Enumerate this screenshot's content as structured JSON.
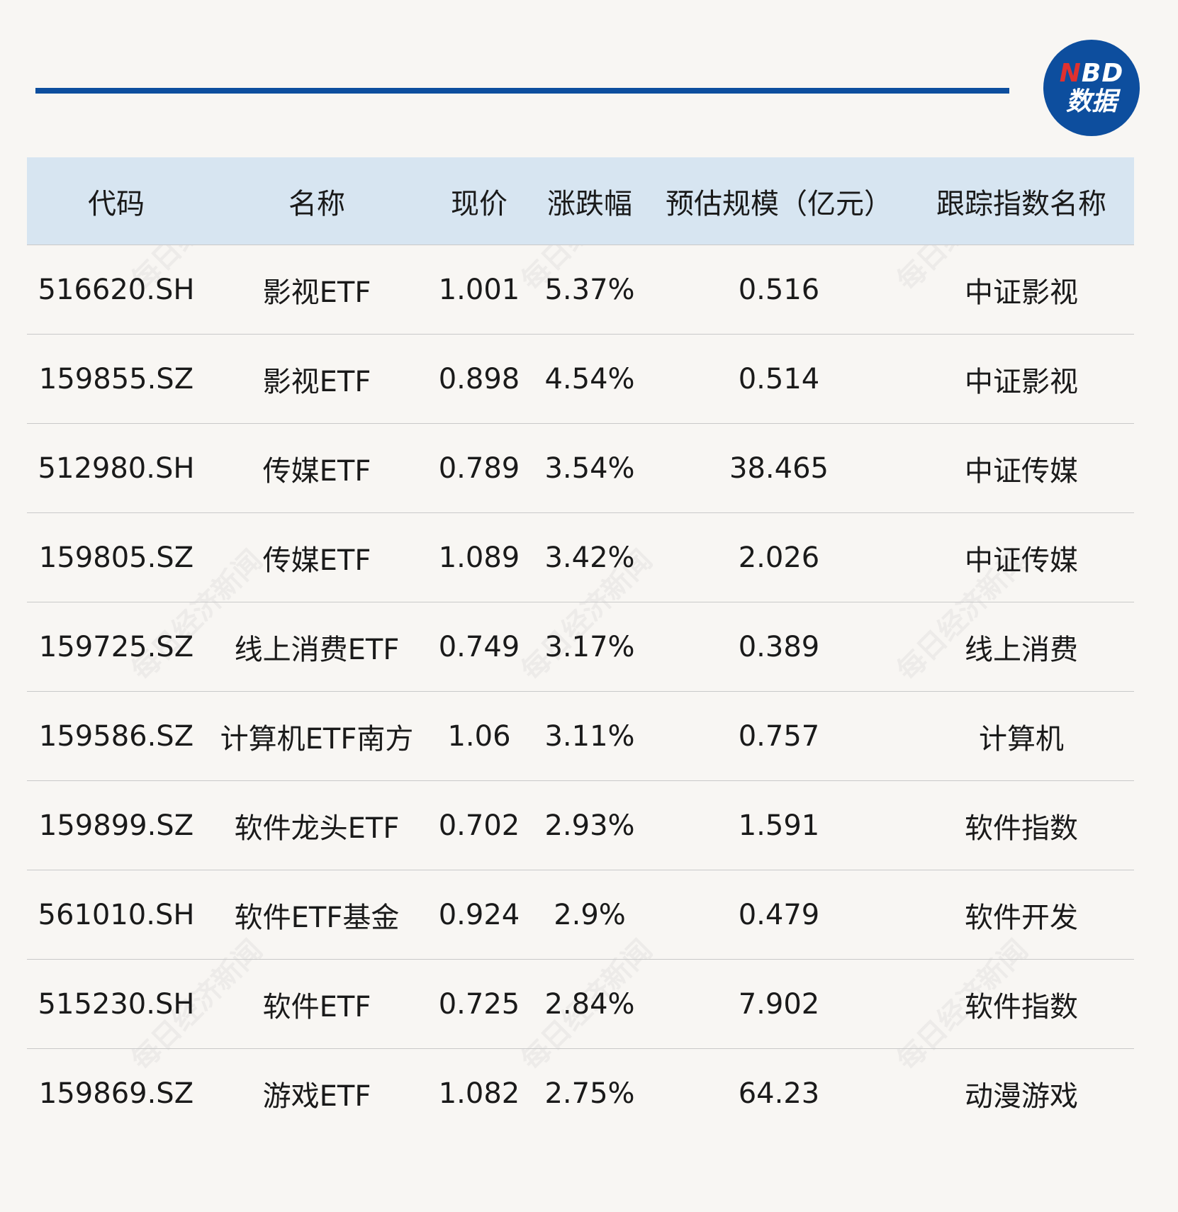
{
  "logo": {
    "line1_n": "N",
    "line1_rest": "BD",
    "line2": "数据"
  },
  "watermark_text": "每日经济新闻",
  "table": {
    "headers": [
      "代码",
      "名称",
      "现价",
      "涨跌幅",
      "预估规模（亿元）",
      "跟踪指数名称"
    ],
    "rows": [
      [
        "516620.SH",
        "影视ETF",
        "1.001",
        "5.37%",
        "0.516",
        "中证影视"
      ],
      [
        "159855.SZ",
        "影视ETF",
        "0.898",
        "4.54%",
        "0.514",
        "中证影视"
      ],
      [
        "512980.SH",
        "传媒ETF",
        "0.789",
        "3.54%",
        "38.465",
        "中证传媒"
      ],
      [
        "159805.SZ",
        "传媒ETF",
        "1.089",
        "3.42%",
        "2.026",
        "中证传媒"
      ],
      [
        "159725.SZ",
        "线上消费ETF",
        "0.749",
        "3.17%",
        "0.389",
        "线上消费"
      ],
      [
        "159586.SZ",
        "计算机ETF南方",
        "1.06",
        "3.11%",
        "0.757",
        "计算机"
      ],
      [
        "159899.SZ",
        "软件龙头ETF",
        "0.702",
        "2.93%",
        "1.591",
        "软件指数"
      ],
      [
        "561010.SH",
        "软件ETF基金",
        "0.924",
        "2.9%",
        "0.479",
        "软件开发"
      ],
      [
        "515230.SH",
        "软件ETF",
        "0.725",
        "2.84%",
        "7.902",
        "软件指数"
      ],
      [
        "159869.SZ",
        "游戏ETF",
        "1.082",
        "2.75%",
        "64.23",
        "动漫游戏"
      ]
    ]
  },
  "colors": {
    "accent": "#0d4e9e",
    "header_bg": "#d7e5f1",
    "logo_red": "#e0312f",
    "page_bg": "#f8f6f3"
  }
}
